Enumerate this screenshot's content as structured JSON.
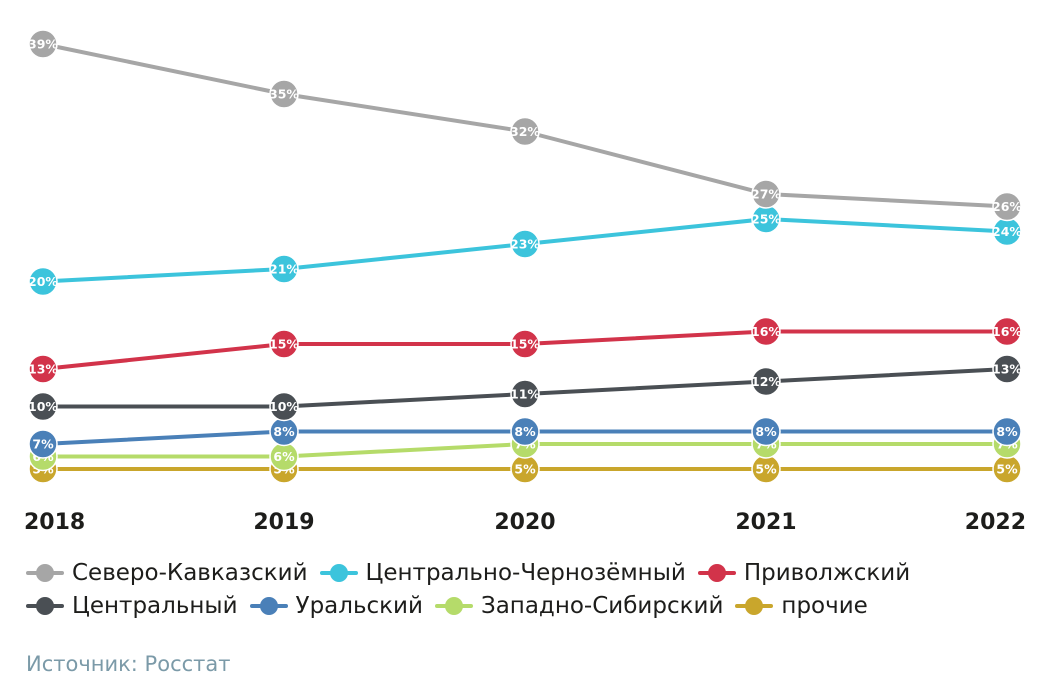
{
  "chart_data": {
    "type": "line",
    "title": "",
    "xlabel": "",
    "ylabel": "",
    "categories": [
      "2018",
      "2019",
      "2020",
      "2021",
      "2022"
    ],
    "ylim": [
      0,
      40
    ],
    "grid": false,
    "legend_position": "bottom",
    "series": [
      {
        "name": "Северо-Кавказский",
        "color": "#a6a6a6",
        "values": [
          39,
          35,
          32,
          27,
          26
        ],
        "labels": [
          "39%",
          "35%",
          "32%",
          "27%",
          "26%"
        ]
      },
      {
        "name": "Центрально-Чернозёмный",
        "color": "#3cc4dc",
        "values": [
          20,
          21,
          23,
          25,
          24
        ],
        "labels": [
          "20%",
          "21%",
          "23%",
          "25%",
          "24%"
        ]
      },
      {
        "name": "Приволжский",
        "color": "#d2334a",
        "values": [
          13,
          15,
          15,
          16,
          16
        ],
        "labels": [
          "13%",
          "15%",
          "15%",
          "16%",
          "16%"
        ]
      },
      {
        "name": "Центральный",
        "color": "#4a4f54",
        "values": [
          10,
          10,
          11,
          12,
          13
        ],
        "labels": [
          "10%",
          "10%",
          "11%",
          "12%",
          "13%"
        ]
      },
      {
        "name": "Уральский",
        "color": "#4a80b8",
        "values": [
          7,
          8,
          8,
          8,
          8
        ],
        "labels": [
          "7%",
          "8%",
          "8%",
          "8%",
          "8%"
        ]
      },
      {
        "name": "Западно-Сибирский",
        "color": "#b5db6a",
        "values": [
          6,
          6,
          7,
          7,
          7
        ],
        "labels": [
          "6%",
          "6%",
          "7%",
          "7%",
          "7%"
        ]
      },
      {
        "name": "прочие",
        "color": "#c9a62c",
        "values": [
          5,
          5,
          5,
          5,
          5
        ],
        "labels": [
          "5%",
          "5%",
          "5%",
          "5%",
          "5%"
        ]
      }
    ]
  },
  "source": "Источник: Росстат"
}
